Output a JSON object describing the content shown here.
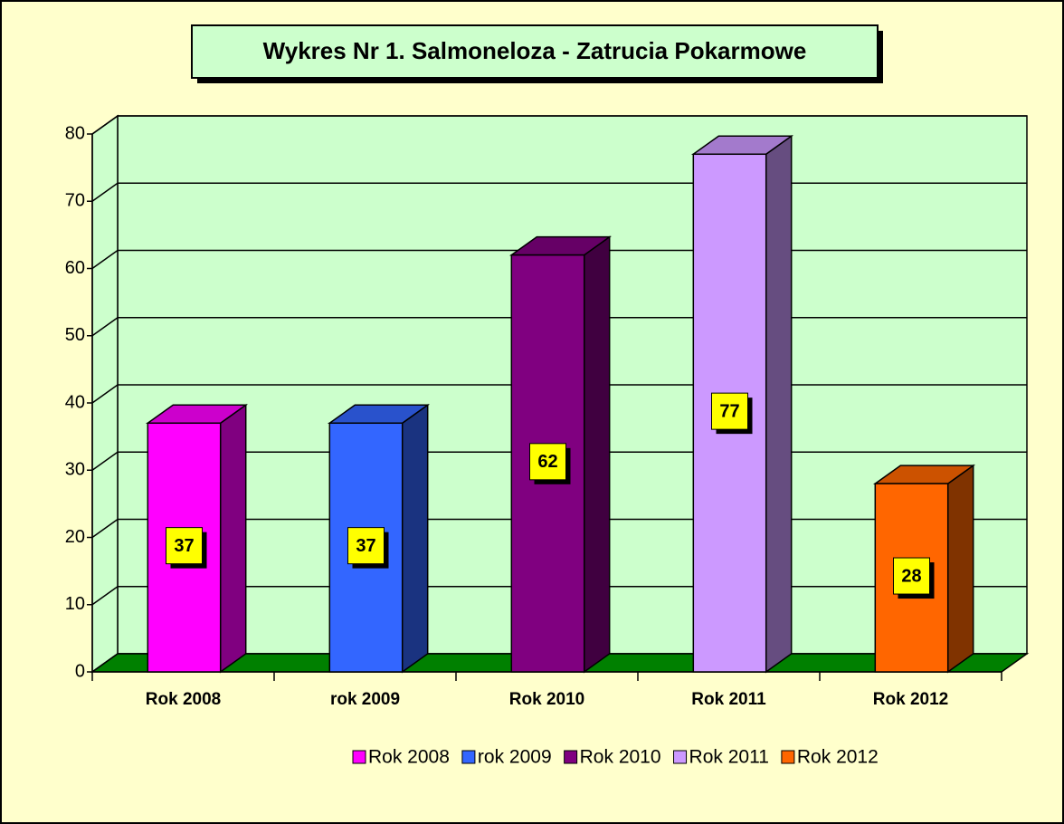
{
  "chart_data": {
    "type": "bar3d",
    "title": "Wykres Nr 1. Salmoneloza - Zatrucia Pokarmowe",
    "categories": [
      "Rok 2008",
      "rok 2009",
      "Rok 2010",
      "Rok 2011",
      "Rok 2012"
    ],
    "values": [
      37,
      37,
      62,
      77,
      28
    ],
    "colors": [
      "#ff00ff",
      "#3366ff",
      "#800080",
      "#cc99ff",
      "#ff6600"
    ],
    "ylim": [
      0,
      80
    ],
    "yticks": [
      0,
      10,
      20,
      30,
      40,
      50,
      60,
      70,
      80
    ],
    "grid": true,
    "legend": "bottom"
  }
}
